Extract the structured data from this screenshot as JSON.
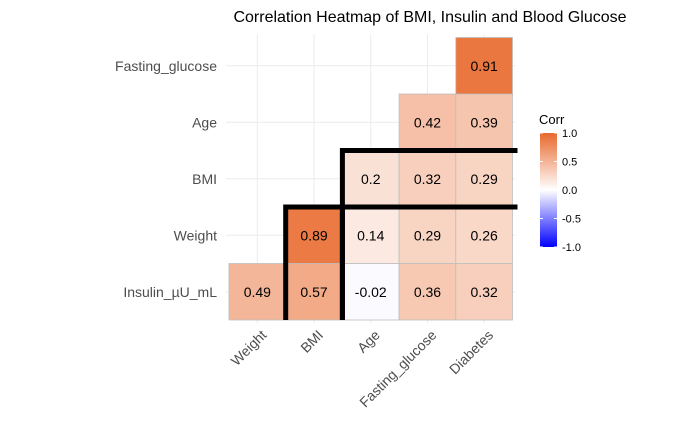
{
  "chart_data": {
    "type": "heatmap",
    "title": "Correlation Heatmap of BMI, Insulin and Blood Glucose",
    "x_labels": [
      "Weight",
      "BMI",
      "Age",
      "Fasting_glucose",
      "Diabetes"
    ],
    "y_labels": [
      "Insulin_µU_mL",
      "Weight",
      "BMI",
      "Age",
      "Fasting_glucose"
    ],
    "cells": [
      {
        "x": "Weight",
        "y": "Insulin_µU_mL",
        "value": 0.49,
        "label": "0.49"
      },
      {
        "x": "BMI",
        "y": "Insulin_µU_mL",
        "value": 0.57,
        "label": "0.57"
      },
      {
        "x": "Age",
        "y": "Insulin_µU_mL",
        "value": -0.02,
        "label": "-0.02"
      },
      {
        "x": "Fasting_glucose",
        "y": "Insulin_µU_mL",
        "value": 0.36,
        "label": "0.36"
      },
      {
        "x": "Diabetes",
        "y": "Insulin_µU_mL",
        "value": 0.32,
        "label": "0.32"
      },
      {
        "x": "BMI",
        "y": "Weight",
        "value": 0.89,
        "label": "0.89"
      },
      {
        "x": "Age",
        "y": "Weight",
        "value": 0.14,
        "label": "0.14"
      },
      {
        "x": "Fasting_glucose",
        "y": "Weight",
        "value": 0.29,
        "label": "0.29"
      },
      {
        "x": "Diabetes",
        "y": "Weight",
        "value": 0.26,
        "label": "0.26"
      },
      {
        "x": "Age",
        "y": "BMI",
        "value": 0.2,
        "label": "0.2"
      },
      {
        "x": "Fasting_glucose",
        "y": "BMI",
        "value": 0.32,
        "label": "0.32"
      },
      {
        "x": "Diabetes",
        "y": "BMI",
        "value": 0.29,
        "label": "0.29"
      },
      {
        "x": "Fasting_glucose",
        "y": "Age",
        "value": 0.42,
        "label": "0.42"
      },
      {
        "x": "Diabetes",
        "y": "Age",
        "value": 0.39,
        "label": "0.39"
      },
      {
        "x": "Diabetes",
        "y": "Fasting_glucose",
        "value": 0.91,
        "label": "0.91"
      }
    ],
    "highlighted_blocks": [
      {
        "x_from": "BMI",
        "x_to": "BMI",
        "y_from": "Insulin_µU_mL",
        "y_to": "Weight",
        "open_side": "top"
      },
      {
        "x_from": "Age",
        "x_to": "Diabetes",
        "y_from": "Insulin_µU_mL",
        "y_to": "BMI",
        "open_side": "bottom"
      }
    ],
    "legend": {
      "title": "Corr",
      "placement": "right",
      "range": [
        -1.0,
        1.0
      ],
      "ticks": [
        "1.0",
        "0.5",
        "0.0",
        "-0.5",
        "-1.0"
      ],
      "tick_values": [
        1.0,
        0.5,
        0.0,
        -0.5,
        -1.0
      ]
    },
    "colors": {
      "low": "#0000ff",
      "mid": "#ffffff",
      "high": "#e8692d",
      "grid": "#ebebeb",
      "highlight": "#000000"
    },
    "grid": true
  }
}
